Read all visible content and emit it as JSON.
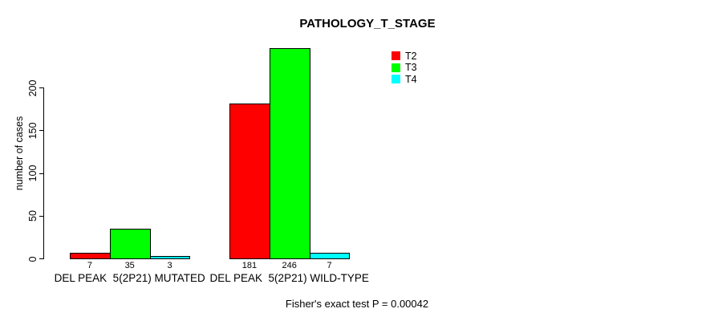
{
  "chart_data": {
    "type": "bar",
    "title": "PATHOLOGY_T_STAGE",
    "ylabel": "number of cases",
    "xlabel": "",
    "categories": [
      "DEL PEAK  5(2P21) MUTATED",
      "DEL PEAK  5(2P21) WILD-TYPE"
    ],
    "series": [
      {
        "name": "T2",
        "color": "#FF0000",
        "values": [
          7,
          181
        ]
      },
      {
        "name": "T3",
        "color": "#00FF00",
        "values": [
          35,
          246
        ]
      },
      {
        "name": "T4",
        "color": "#00FFFF",
        "values": [
          3,
          7
        ]
      }
    ],
    "bar_value_labels": [
      [
        "7",
        "35",
        "3"
      ],
      [
        "181",
        "246",
        "7"
      ]
    ],
    "yticks": [
      0,
      50,
      100,
      150,
      200
    ],
    "ylim": [
      0,
      250
    ],
    "grid": false,
    "legend_position": "top-right",
    "bar_outline_color": "#000000",
    "annotation": "Fisher's exact test P = 0.00042"
  }
}
